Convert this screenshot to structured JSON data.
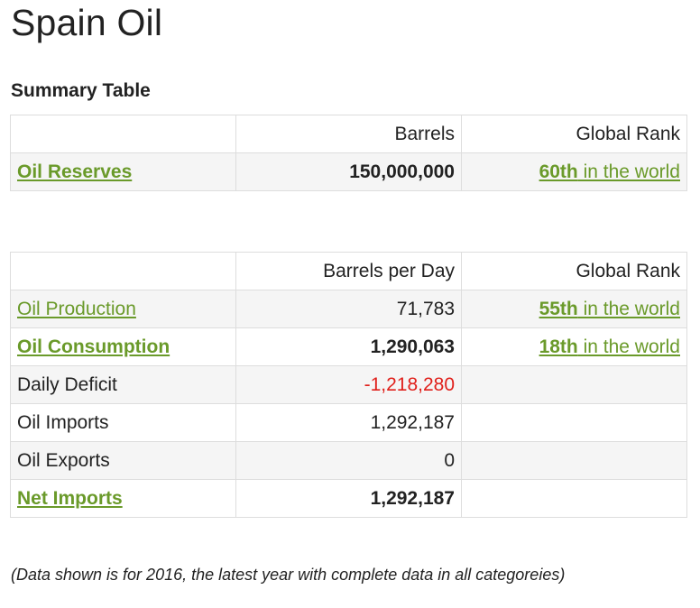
{
  "page_title": "Spain Oil",
  "summary_heading": "Summary Table",
  "table1": {
    "headers": [
      "",
      "Barrels",
      "Global Rank"
    ],
    "rows": [
      {
        "label": "Oil Reserves",
        "value": "150,000,000",
        "rank": "60th",
        "rank_suffix": " in the world"
      }
    ]
  },
  "table2": {
    "headers": [
      "",
      "Barrels per Day",
      "Global Rank"
    ],
    "rows": [
      {
        "label": "Oil Production",
        "value": "71,783",
        "rank": "55th",
        "rank_suffix": " in the world"
      },
      {
        "label": "Oil Consumption",
        "value": "1,290,063",
        "rank": "18th",
        "rank_suffix": " in the world"
      },
      {
        "label": "Daily Deficit",
        "value": "-1,218,280",
        "rank": "",
        "rank_suffix": ""
      },
      {
        "label": "Oil Imports",
        "value": "1,292,187",
        "rank": "",
        "rank_suffix": ""
      },
      {
        "label": "Oil Exports",
        "value": "0",
        "rank": "",
        "rank_suffix": ""
      },
      {
        "label": "Net Imports",
        "value": "1,292,187",
        "rank": "",
        "rank_suffix": ""
      }
    ]
  },
  "footnote": "(Data shown is for 2016, the latest year with complete data in all categoreies)",
  "colors": {
    "link": "#6a9a2a",
    "negative": "#e0201b",
    "border": "#dddddd",
    "stripe": "#f5f5f5"
  }
}
